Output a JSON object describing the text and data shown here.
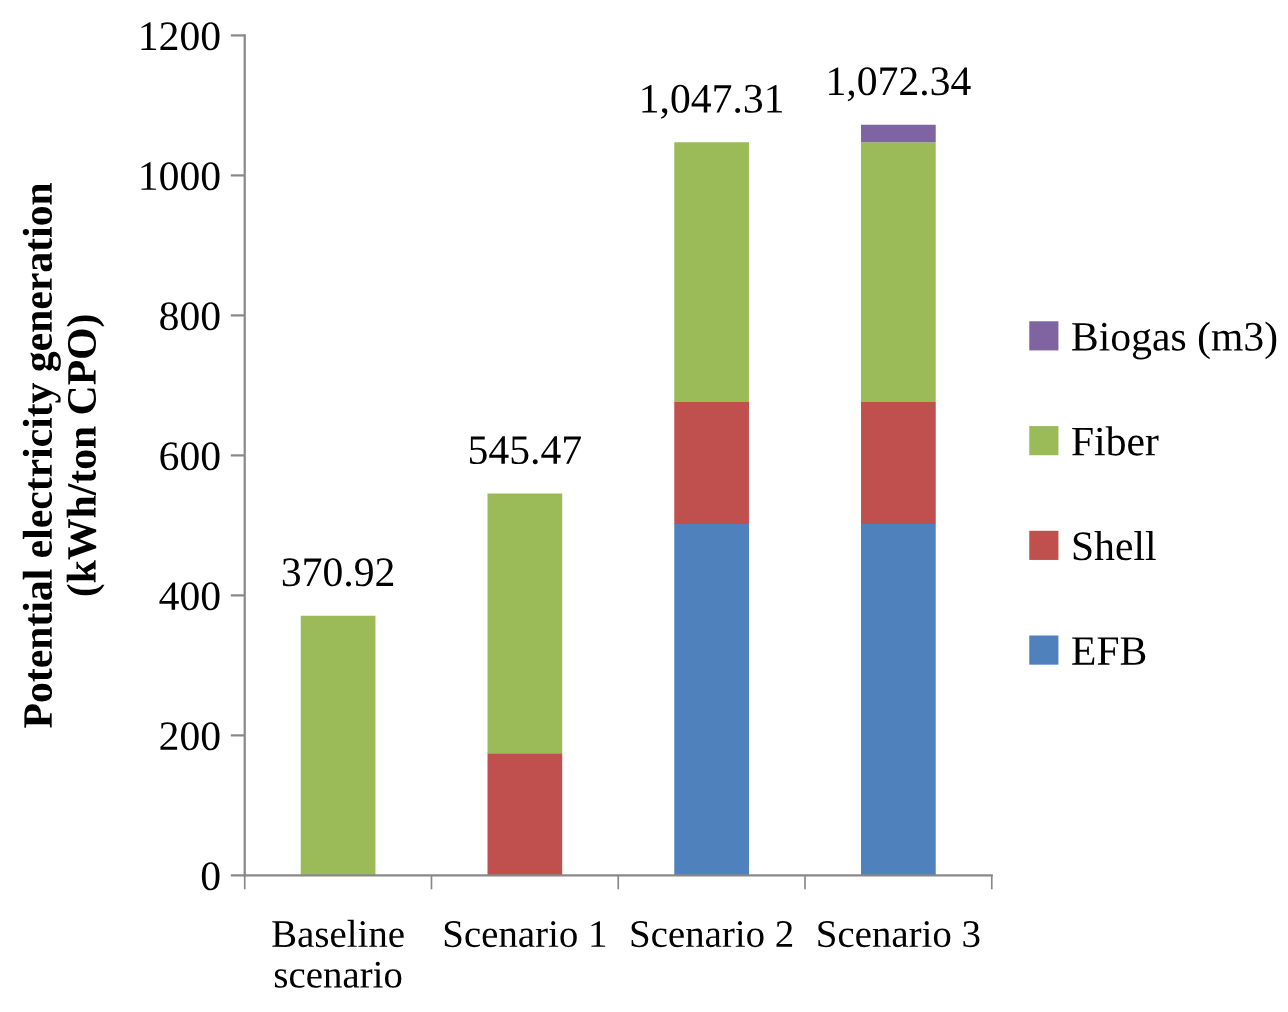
{
  "chart_data": {
    "type": "bar",
    "stacked": true,
    "ylabel": "Potential electricity generation\n(kWh/ton CPO)",
    "categories": [
      "Baseline\nscenario",
      "Scenario 1",
      "Scenario 2",
      "Scenario 3"
    ],
    "series": [
      {
        "name": "EFB",
        "color": "#4f81bd",
        "values": [
          null,
          null,
          501.84,
          501.84
        ]
      },
      {
        "name": "Shell",
        "color": "#c0504d",
        "values": [
          null,
          174.55,
          174.55,
          174.55
        ]
      },
      {
        "name": "Fiber",
        "color": "#9bbb59",
        "values": [
          370.92,
          370.92,
          370.92,
          370.92
        ]
      },
      {
        "name": "Biogas (m3)",
        "color": "#8064a2",
        "values": [
          null,
          null,
          null,
          25.03
        ]
      }
    ],
    "totals": [
      "370.92",
      "545.47",
      "1,047.31",
      "1,072.34"
    ],
    "ylim": [
      0,
      1200
    ],
    "yticks": [
      0,
      200,
      400,
      600,
      800,
      1000,
      1200
    ],
    "grid": false,
    "legend": "right"
  }
}
